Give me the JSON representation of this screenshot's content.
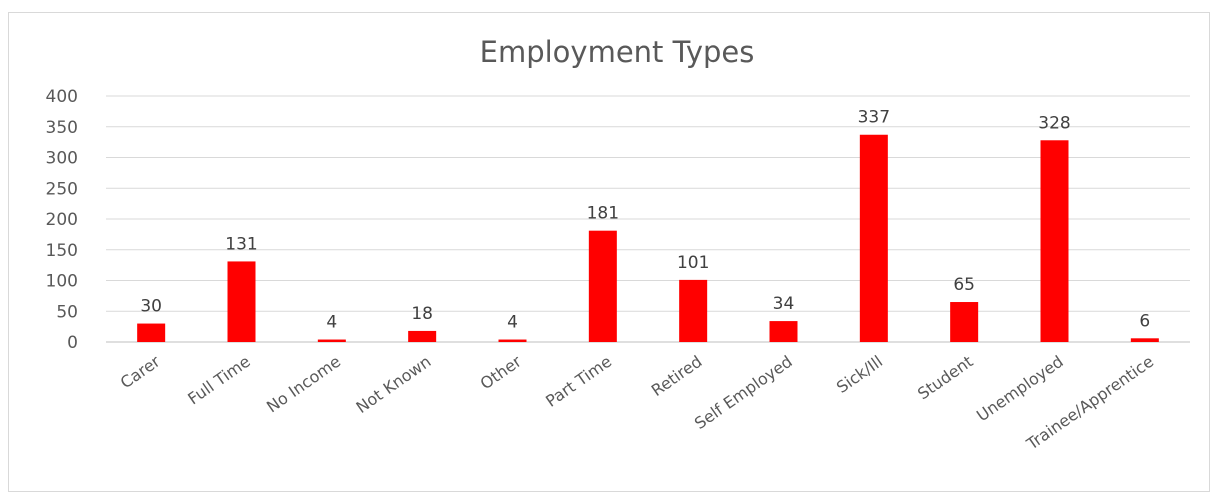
{
  "chart_data": {
    "type": "bar",
    "title": "Employment Types",
    "xlabel": "",
    "ylabel": "",
    "ylim": [
      0,
      400
    ],
    "yticks": [
      0,
      50,
      100,
      150,
      200,
      250,
      300,
      350,
      400
    ],
    "grid": true,
    "legend": "none",
    "bar_color": "#ff0000",
    "categories": [
      "Carer",
      "Full Time",
      "No Income",
      "Not Known",
      "Other",
      "Part Time",
      "Retired",
      "Self Employed",
      "Sick/Ill",
      "Student",
      "Unemployed",
      "Trainee/Apprentice"
    ],
    "values": [
      30,
      131,
      4,
      18,
      4,
      181,
      101,
      34,
      337,
      65,
      328,
      6
    ]
  }
}
